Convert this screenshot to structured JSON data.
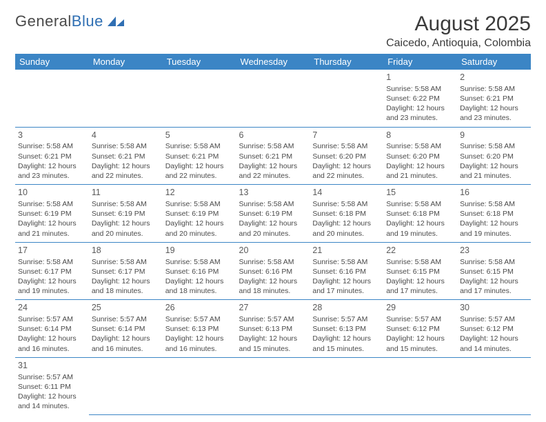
{
  "logo": {
    "text1": "General",
    "text2": "Blue"
  },
  "title": "August 2025",
  "location": "Caicedo, Antioquia, Colombia",
  "colors": {
    "header_bg": "#3b85c5",
    "header_fg": "#ffffff",
    "text": "#4a4a4a"
  },
  "weekdays": [
    "Sunday",
    "Monday",
    "Tuesday",
    "Wednesday",
    "Thursday",
    "Friday",
    "Saturday"
  ],
  "weeks": [
    [
      null,
      null,
      null,
      null,
      null,
      {
        "n": "1",
        "sr": "5:58 AM",
        "ss": "6:22 PM",
        "dl": "12 hours and 23 minutes."
      },
      {
        "n": "2",
        "sr": "5:58 AM",
        "ss": "6:21 PM",
        "dl": "12 hours and 23 minutes."
      }
    ],
    [
      {
        "n": "3",
        "sr": "5:58 AM",
        "ss": "6:21 PM",
        "dl": "12 hours and 23 minutes."
      },
      {
        "n": "4",
        "sr": "5:58 AM",
        "ss": "6:21 PM",
        "dl": "12 hours and 22 minutes."
      },
      {
        "n": "5",
        "sr": "5:58 AM",
        "ss": "6:21 PM",
        "dl": "12 hours and 22 minutes."
      },
      {
        "n": "6",
        "sr": "5:58 AM",
        "ss": "6:21 PM",
        "dl": "12 hours and 22 minutes."
      },
      {
        "n": "7",
        "sr": "5:58 AM",
        "ss": "6:20 PM",
        "dl": "12 hours and 22 minutes."
      },
      {
        "n": "8",
        "sr": "5:58 AM",
        "ss": "6:20 PM",
        "dl": "12 hours and 21 minutes."
      },
      {
        "n": "9",
        "sr": "5:58 AM",
        "ss": "6:20 PM",
        "dl": "12 hours and 21 minutes."
      }
    ],
    [
      {
        "n": "10",
        "sr": "5:58 AM",
        "ss": "6:19 PM",
        "dl": "12 hours and 21 minutes."
      },
      {
        "n": "11",
        "sr": "5:58 AM",
        "ss": "6:19 PM",
        "dl": "12 hours and 20 minutes."
      },
      {
        "n": "12",
        "sr": "5:58 AM",
        "ss": "6:19 PM",
        "dl": "12 hours and 20 minutes."
      },
      {
        "n": "13",
        "sr": "5:58 AM",
        "ss": "6:19 PM",
        "dl": "12 hours and 20 minutes."
      },
      {
        "n": "14",
        "sr": "5:58 AM",
        "ss": "6:18 PM",
        "dl": "12 hours and 20 minutes."
      },
      {
        "n": "15",
        "sr": "5:58 AM",
        "ss": "6:18 PM",
        "dl": "12 hours and 19 minutes."
      },
      {
        "n": "16",
        "sr": "5:58 AM",
        "ss": "6:18 PM",
        "dl": "12 hours and 19 minutes."
      }
    ],
    [
      {
        "n": "17",
        "sr": "5:58 AM",
        "ss": "6:17 PM",
        "dl": "12 hours and 19 minutes."
      },
      {
        "n": "18",
        "sr": "5:58 AM",
        "ss": "6:17 PM",
        "dl": "12 hours and 18 minutes."
      },
      {
        "n": "19",
        "sr": "5:58 AM",
        "ss": "6:16 PM",
        "dl": "12 hours and 18 minutes."
      },
      {
        "n": "20",
        "sr": "5:58 AM",
        "ss": "6:16 PM",
        "dl": "12 hours and 18 minutes."
      },
      {
        "n": "21",
        "sr": "5:58 AM",
        "ss": "6:16 PM",
        "dl": "12 hours and 17 minutes."
      },
      {
        "n": "22",
        "sr": "5:58 AM",
        "ss": "6:15 PM",
        "dl": "12 hours and 17 minutes."
      },
      {
        "n": "23",
        "sr": "5:58 AM",
        "ss": "6:15 PM",
        "dl": "12 hours and 17 minutes."
      }
    ],
    [
      {
        "n": "24",
        "sr": "5:57 AM",
        "ss": "6:14 PM",
        "dl": "12 hours and 16 minutes."
      },
      {
        "n": "25",
        "sr": "5:57 AM",
        "ss": "6:14 PM",
        "dl": "12 hours and 16 minutes."
      },
      {
        "n": "26",
        "sr": "5:57 AM",
        "ss": "6:13 PM",
        "dl": "12 hours and 16 minutes."
      },
      {
        "n": "27",
        "sr": "5:57 AM",
        "ss": "6:13 PM",
        "dl": "12 hours and 15 minutes."
      },
      {
        "n": "28",
        "sr": "5:57 AM",
        "ss": "6:13 PM",
        "dl": "12 hours and 15 minutes."
      },
      {
        "n": "29",
        "sr": "5:57 AM",
        "ss": "6:12 PM",
        "dl": "12 hours and 15 minutes."
      },
      {
        "n": "30",
        "sr": "5:57 AM",
        "ss": "6:12 PM",
        "dl": "12 hours and 14 minutes."
      }
    ],
    [
      {
        "n": "31",
        "sr": "5:57 AM",
        "ss": "6:11 PM",
        "dl": "12 hours and 14 minutes."
      },
      null,
      null,
      null,
      null,
      null,
      null
    ]
  ],
  "labels": {
    "sunrise": "Sunrise:",
    "sunset": "Sunset:",
    "daylight": "Daylight:"
  }
}
